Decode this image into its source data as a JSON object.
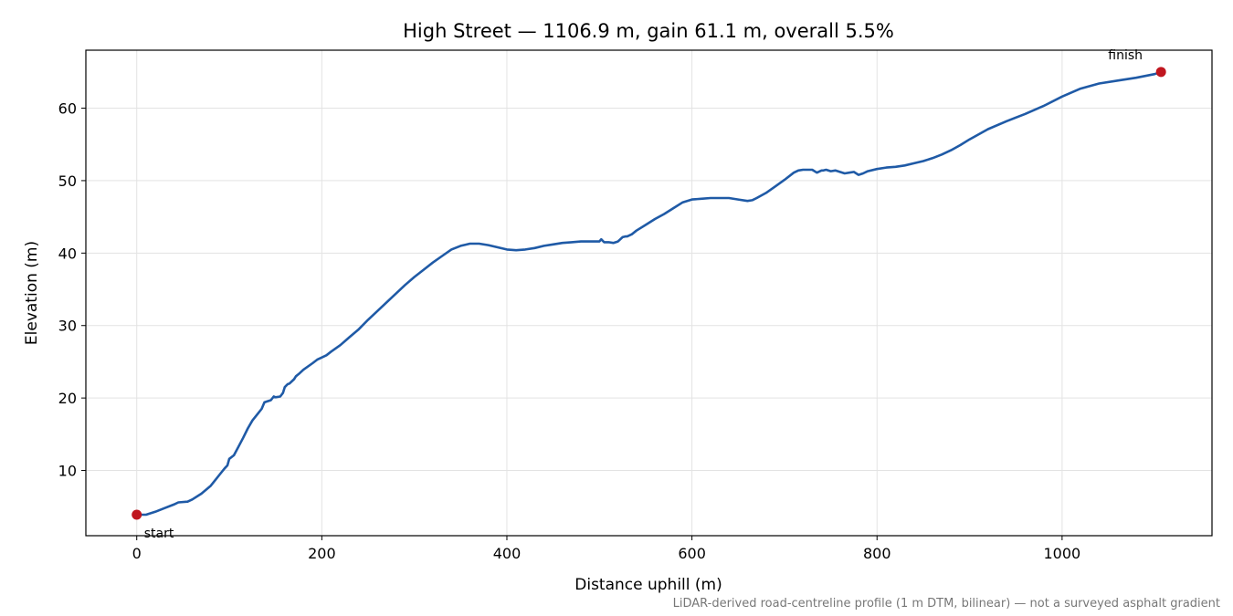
{
  "chart_data": {
    "type": "line",
    "title": "High Street — 1106.9 m, gain 61.1 m, overall 5.5%",
    "xlabel": "Distance uphill (m)",
    "ylabel": "Elevation (m)",
    "xlim": [
      -55,
      1162
    ],
    "ylim": [
      1,
      68
    ],
    "xticks": [
      0,
      200,
      400,
      600,
      800,
      1000
    ],
    "yticks": [
      10,
      20,
      30,
      40,
      50,
      60
    ],
    "grid": true,
    "series": [
      {
        "color": "#1f5aa6",
        "x": [
          0,
          10,
          20,
          30,
          40,
          45,
          55,
          60,
          70,
          80,
          85,
          90,
          95,
          98,
          100,
          105,
          110,
          115,
          120,
          125,
          130,
          135,
          138,
          140,
          145,
          148,
          150,
          155,
          158,
          160,
          163,
          165,
          170,
          172,
          175,
          180,
          190,
          195,
          200,
          205,
          210,
          220,
          230,
          240,
          250,
          260,
          270,
          280,
          290,
          300,
          310,
          320,
          330,
          340,
          350,
          360,
          370,
          380,
          390,
          400,
          410,
          420,
          430,
          440,
          450,
          460,
          470,
          480,
          490,
          500,
          502,
          505,
          510,
          515,
          520,
          525,
          528,
          530,
          535,
          540,
          550,
          560,
          570,
          580,
          590,
          600,
          610,
          620,
          630,
          640,
          650,
          660,
          665,
          670,
          680,
          690,
          700,
          710,
          715,
          720,
          730,
          735,
          740,
          742,
          745,
          750,
          755,
          760,
          765,
          770,
          775,
          780,
          785,
          790,
          800,
          810,
          820,
          830,
          840,
          850,
          860,
          870,
          880,
          890,
          900,
          920,
          940,
          960,
          980,
          1000,
          1020,
          1040,
          1060,
          1080,
          1100,
          1106.9
        ],
        "y": [
          3.9,
          3.9,
          4.3,
          4.8,
          5.3,
          5.6,
          5.7,
          6.0,
          6.8,
          7.9,
          8.7,
          9.5,
          10.3,
          10.7,
          11.6,
          12.1,
          13.3,
          14.5,
          15.8,
          16.9,
          17.7,
          18.5,
          19.4,
          19.5,
          19.7,
          20.2,
          20.1,
          20.2,
          20.7,
          21.5,
          21.9,
          22.0,
          22.6,
          23.0,
          23.3,
          23.9,
          24.8,
          25.3,
          25.6,
          25.9,
          26.4,
          27.3,
          28.4,
          29.5,
          30.8,
          32.0,
          33.2,
          34.4,
          35.6,
          36.7,
          37.7,
          38.7,
          39.6,
          40.5,
          41.0,
          41.3,
          41.3,
          41.1,
          40.8,
          40.5,
          40.4,
          40.5,
          40.7,
          41.0,
          41.2,
          41.4,
          41.5,
          41.6,
          41.6,
          41.6,
          41.9,
          41.5,
          41.5,
          41.4,
          41.6,
          42.2,
          42.3,
          42.3,
          42.6,
          43.1,
          43.9,
          44.7,
          45.4,
          46.2,
          47.0,
          47.4,
          47.5,
          47.6,
          47.6,
          47.6,
          47.4,
          47.2,
          47.3,
          47.6,
          48.3,
          49.2,
          50.1,
          51.1,
          51.4,
          51.5,
          51.5,
          51.1,
          51.4,
          51.4,
          51.5,
          51.3,
          51.4,
          51.2,
          51.0,
          51.1,
          51.2,
          50.8,
          51.0,
          51.3,
          51.6,
          51.8,
          51.9,
          52.1,
          52.4,
          52.7,
          53.1,
          53.6,
          54.2,
          54.9,
          55.7,
          57.1,
          58.2,
          59.2,
          60.3,
          61.6,
          62.7,
          63.4,
          63.8,
          64.2,
          64.7,
          65.0
        ]
      }
    ],
    "markers": [
      {
        "x": 0,
        "y": 3.9,
        "label": "start",
        "color": "#c0161f"
      },
      {
        "x": 1106.9,
        "y": 65.0,
        "label": "finish",
        "color": "#c0161f"
      }
    ],
    "footnote": "LiDAR-derived road-centreline profile (1 m DTM, bilinear) — not a surveyed asphalt gradient"
  }
}
